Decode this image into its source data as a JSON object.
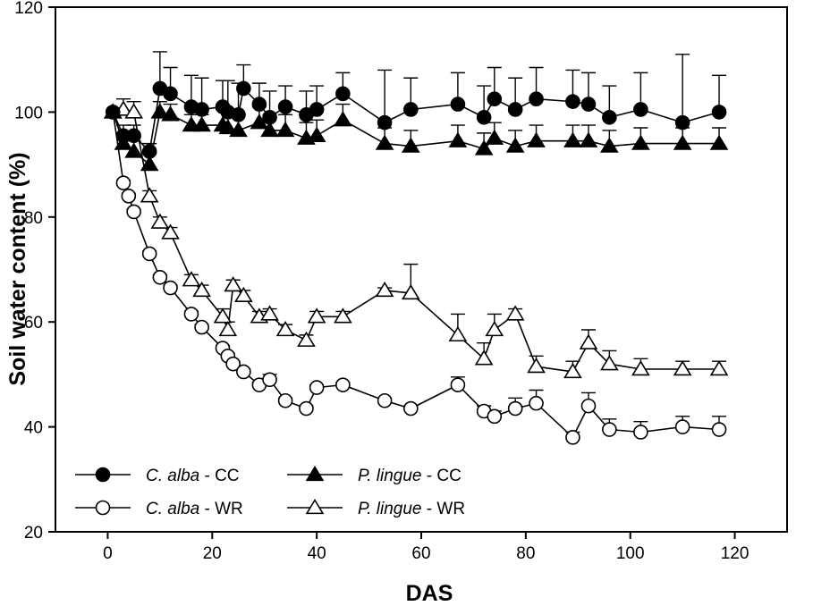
{
  "chart_data": {
    "type": "line",
    "title": "",
    "xlabel": "DAS",
    "ylabel": "Soil water content (%)",
    "xlim": [
      -10,
      130
    ],
    "ylim": [
      20,
      120
    ],
    "xticks": [
      0,
      20,
      40,
      60,
      80,
      100,
      120
    ],
    "yticks": [
      20,
      40,
      60,
      80,
      100,
      120
    ],
    "grid": false,
    "legend_position": "bottom-left",
    "series": [
      {
        "name": "C. alba - CC",
        "legend_species": "C. alba",
        "legend_suffix": " - CC",
        "marker": "circle",
        "fill": "filled",
        "points": [
          {
            "x": 1,
            "y": 100,
            "err": 0
          },
          {
            "x": 3,
            "y": 95.5,
            "err": 2
          },
          {
            "x": 5,
            "y": 95.5,
            "err": 2
          },
          {
            "x": 8,
            "y": 92.5,
            "err": 1.5
          },
          {
            "x": 10,
            "y": 104.5,
            "err": 7
          },
          {
            "x": 12,
            "y": 103.5,
            "err": 5
          },
          {
            "x": 16,
            "y": 101,
            "err": 6
          },
          {
            "x": 18,
            "y": 100.5,
            "err": 6
          },
          {
            "x": 22,
            "y": 101,
            "err": 5
          },
          {
            "x": 23,
            "y": 100,
            "err": 6
          },
          {
            "x": 25,
            "y": 99.5,
            "err": 6
          },
          {
            "x": 26,
            "y": 104.5,
            "err": 4.5
          },
          {
            "x": 29,
            "y": 101.5,
            "err": 4
          },
          {
            "x": 31,
            "y": 99,
            "err": 5
          },
          {
            "x": 34,
            "y": 101,
            "err": 4
          },
          {
            "x": 38,
            "y": 99.5,
            "err": 4.5
          },
          {
            "x": 40,
            "y": 100.5,
            "err": 4.5
          },
          {
            "x": 45,
            "y": 103.5,
            "err": 4
          },
          {
            "x": 53,
            "y": 98,
            "err": 10
          },
          {
            "x": 58,
            "y": 100.5,
            "err": 6
          },
          {
            "x": 67,
            "y": 101.5,
            "err": 6
          },
          {
            "x": 72,
            "y": 99,
            "err": 6
          },
          {
            "x": 74,
            "y": 102.5,
            "err": 6
          },
          {
            "x": 78,
            "y": 100.5,
            "err": 6
          },
          {
            "x": 82,
            "y": 102.5,
            "err": 6
          },
          {
            "x": 89,
            "y": 102,
            "err": 6
          },
          {
            "x": 92,
            "y": 101.5,
            "err": 6
          },
          {
            "x": 96,
            "y": 99,
            "err": 6
          },
          {
            "x": 102,
            "y": 100.5,
            "err": 7
          },
          {
            "x": 110,
            "y": 98,
            "err": 13
          },
          {
            "x": 117,
            "y": 100,
            "err": 7
          }
        ]
      },
      {
        "name": "C. alba - WR",
        "legend_species": "C. alba",
        "legend_suffix": " - WR",
        "marker": "circle",
        "fill": "open",
        "points": [
          {
            "x": 1,
            "y": 100,
            "err": 0
          },
          {
            "x": 3,
            "y": 86.5,
            "err": 0.5
          },
          {
            "x": 4,
            "y": 84,
            "err": 0.5
          },
          {
            "x": 5,
            "y": 81,
            "err": 0.5
          },
          {
            "x": 8,
            "y": 73,
            "err": 0.5
          },
          {
            "x": 10,
            "y": 68.5,
            "err": 0.5
          },
          {
            "x": 12,
            "y": 66.5,
            "err": 0.5
          },
          {
            "x": 16,
            "y": 61.5,
            "err": 0.5
          },
          {
            "x": 18,
            "y": 59,
            "err": 0.5
          },
          {
            "x": 22,
            "y": 55,
            "err": 0.5
          },
          {
            "x": 23,
            "y": 53.5,
            "err": 0.5
          },
          {
            "x": 24,
            "y": 52,
            "err": 0.5
          },
          {
            "x": 26,
            "y": 50.5,
            "err": 0.5
          },
          {
            "x": 29,
            "y": 48,
            "err": 0.5
          },
          {
            "x": 31,
            "y": 49,
            "err": 1
          },
          {
            "x": 34,
            "y": 45,
            "err": 0.5
          },
          {
            "x": 38,
            "y": 43.5,
            "err": 0.5
          },
          {
            "x": 40,
            "y": 47.5,
            "err": 0.5
          },
          {
            "x": 45,
            "y": 48,
            "err": 0.5
          },
          {
            "x": 53,
            "y": 45,
            "err": 0.5
          },
          {
            "x": 58,
            "y": 43.5,
            "err": 0.5
          },
          {
            "x": 67,
            "y": 48,
            "err": 1.5
          },
          {
            "x": 72,
            "y": 43,
            "err": 1
          },
          {
            "x": 74,
            "y": 42,
            "err": 1
          },
          {
            "x": 78,
            "y": 43.5,
            "err": 2
          },
          {
            "x": 82,
            "y": 44.5,
            "err": 2.5
          },
          {
            "x": 89,
            "y": 38,
            "err": 1
          },
          {
            "x": 92,
            "y": 44,
            "err": 2.5
          },
          {
            "x": 96,
            "y": 39.5,
            "err": 2
          },
          {
            "x": 102,
            "y": 39,
            "err": 2
          },
          {
            "x": 110,
            "y": 40,
            "err": 2
          },
          {
            "x": 117,
            "y": 39.5,
            "err": 2.5
          }
        ]
      },
      {
        "name": "P. lingue - CC",
        "legend_species": "P. lingue",
        "legend_suffix": " - CC",
        "marker": "triangle",
        "fill": "filled",
        "points": [
          {
            "x": 1,
            "y": 100,
            "err": 0
          },
          {
            "x": 3,
            "y": 94,
            "err": 2
          },
          {
            "x": 5,
            "y": 92.5,
            "err": 2
          },
          {
            "x": 8,
            "y": 90,
            "err": 2
          },
          {
            "x": 10,
            "y": 100,
            "err": 2
          },
          {
            "x": 12,
            "y": 99.5,
            "err": 2
          },
          {
            "x": 16,
            "y": 97.5,
            "err": 2
          },
          {
            "x": 18,
            "y": 97.5,
            "err": 2
          },
          {
            "x": 22,
            "y": 97.5,
            "err": 3
          },
          {
            "x": 23,
            "y": 97,
            "err": 3
          },
          {
            "x": 25,
            "y": 96.5,
            "err": 3
          },
          {
            "x": 29,
            "y": 98,
            "err": 3
          },
          {
            "x": 31,
            "y": 96.5,
            "err": 3
          },
          {
            "x": 34,
            "y": 96.5,
            "err": 3
          },
          {
            "x": 38,
            "y": 95,
            "err": 3
          },
          {
            "x": 40,
            "y": 95.5,
            "err": 3
          },
          {
            "x": 45,
            "y": 98.5,
            "err": 3
          },
          {
            "x": 53,
            "y": 94,
            "err": 3
          },
          {
            "x": 58,
            "y": 93.5,
            "err": 3
          },
          {
            "x": 67,
            "y": 94.5,
            "err": 3
          },
          {
            "x": 72,
            "y": 93,
            "err": 3
          },
          {
            "x": 74,
            "y": 95,
            "err": 3
          },
          {
            "x": 78,
            "y": 93.5,
            "err": 3
          },
          {
            "x": 82,
            "y": 94.5,
            "err": 3
          },
          {
            "x": 89,
            "y": 94.5,
            "err": 3
          },
          {
            "x": 92,
            "y": 94.5,
            "err": 3
          },
          {
            "x": 96,
            "y": 93.5,
            "err": 3
          },
          {
            "x": 102,
            "y": 94,
            "err": 3
          },
          {
            "x": 110,
            "y": 94,
            "err": 3
          },
          {
            "x": 117,
            "y": 94,
            "err": 3
          }
        ]
      },
      {
        "name": "P. lingue - WR",
        "legend_species": "P. lingue",
        "legend_suffix": " - WR",
        "marker": "triangle",
        "fill": "open",
        "points": [
          {
            "x": 1,
            "y": 100,
            "err": 0
          },
          {
            "x": 3,
            "y": 100.5,
            "err": 2
          },
          {
            "x": 5,
            "y": 100,
            "err": 2
          },
          {
            "x": 8,
            "y": 84,
            "err": 1
          },
          {
            "x": 10,
            "y": 79,
            "err": 1
          },
          {
            "x": 12,
            "y": 77,
            "err": 1
          },
          {
            "x": 16,
            "y": 68,
            "err": 1
          },
          {
            "x": 18,
            "y": 66,
            "err": 1
          },
          {
            "x": 22,
            "y": 61,
            "err": 1.5
          },
          {
            "x": 23,
            "y": 58.5,
            "err": 1.5
          },
          {
            "x": 24,
            "y": 67,
            "err": 1
          },
          {
            "x": 26,
            "y": 65,
            "err": 1
          },
          {
            "x": 29,
            "y": 61,
            "err": 1
          },
          {
            "x": 31,
            "y": 61.5,
            "err": 1
          },
          {
            "x": 34,
            "y": 58.5,
            "err": 1
          },
          {
            "x": 38,
            "y": 56.5,
            "err": 1
          },
          {
            "x": 40,
            "y": 61,
            "err": 1
          },
          {
            "x": 45,
            "y": 61,
            "err": 1
          },
          {
            "x": 53,
            "y": 66,
            "err": 0.5
          },
          {
            "x": 58,
            "y": 65.5,
            "err": 5.5
          },
          {
            "x": 67,
            "y": 57.5,
            "err": 4
          },
          {
            "x": 72,
            "y": 53,
            "err": 3
          },
          {
            "x": 74,
            "y": 58.5,
            "err": 3
          },
          {
            "x": 78,
            "y": 61.5,
            "err": 1
          },
          {
            "x": 82,
            "y": 51.5,
            "err": 2
          },
          {
            "x": 89,
            "y": 50.5,
            "err": 2
          },
          {
            "x": 92,
            "y": 56,
            "err": 2.5
          },
          {
            "x": 96,
            "y": 52,
            "err": 2.5
          },
          {
            "x": 102,
            "y": 51,
            "err": 2
          },
          {
            "x": 110,
            "y": 51,
            "err": 1.5
          },
          {
            "x": 117,
            "y": 51,
            "err": 1.5
          }
        ]
      }
    ]
  }
}
